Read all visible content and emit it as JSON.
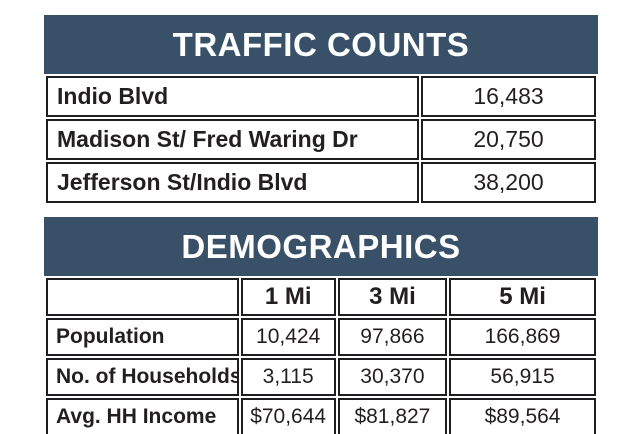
{
  "colors": {
    "header_bg": "#395168",
    "header_text": "#ffffff",
    "border": "#1e1e20",
    "body_text": "#231f20",
    "page_bg": "#ffffff"
  },
  "traffic": {
    "title": "TRAFFIC COUNTS",
    "rows": [
      {
        "label": "Indio Blvd",
        "value": "16,483"
      },
      {
        "label": "Madison St/ Fred Waring Dr",
        "value": "20,750"
      },
      {
        "label": "Jefferson St/Indio Blvd",
        "value": "38,200"
      }
    ]
  },
  "demographics": {
    "title": "DEMOGRAPHICS",
    "columns": [
      "1 Mi",
      "3 Mi",
      "5 Mi"
    ],
    "rows": [
      {
        "label": "Population",
        "values": [
          "10,424",
          "97,866",
          "166,869"
        ]
      },
      {
        "label": "No. of Households",
        "values": [
          "3,115",
          "30,370",
          "56,915"
        ]
      },
      {
        "label": "Avg. HH Income",
        "values": [
          "$70,644",
          "$81,827",
          "$89,564"
        ]
      }
    ]
  }
}
